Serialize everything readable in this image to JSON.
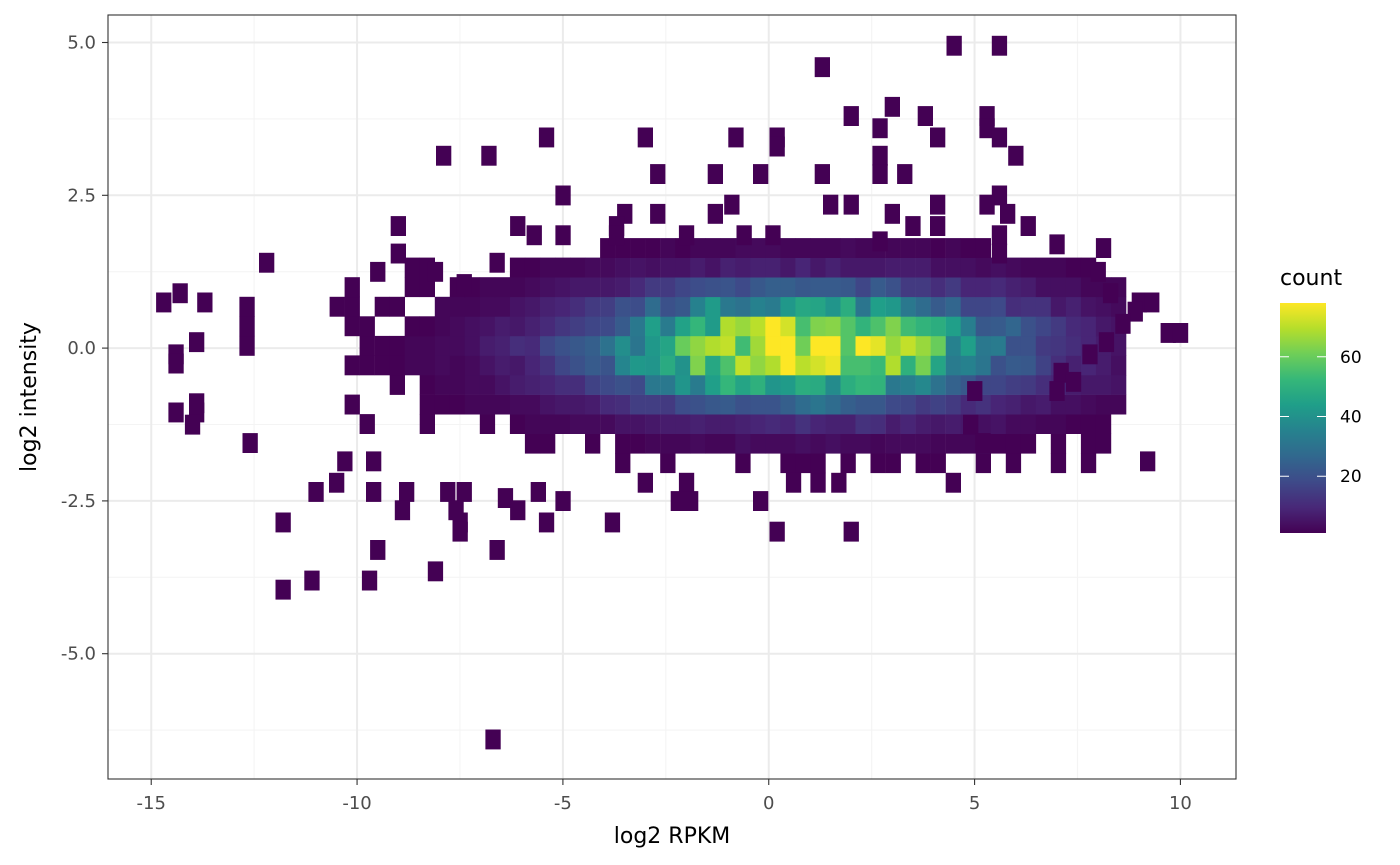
{
  "chart_data": {
    "type": "heatmap",
    "title": "",
    "xlabel": "log2 RPKM",
    "ylabel": "log2 intensity",
    "xlim": [
      -16.05,
      11.35
    ],
    "ylim": [
      -7.05,
      5.45
    ],
    "x_ticks": [
      -15,
      -10,
      -5,
      0,
      5,
      10
    ],
    "x_tick_labels": [
      "-15",
      "-10",
      "-5",
      "0",
      "5",
      "10"
    ],
    "y_ticks": [
      5.0,
      2.5,
      0.0,
      -2.5,
      -5.0
    ],
    "y_tick_labels": [
      "5.0",
      "2.5",
      "0.0",
      "-2.5",
      "-5.0"
    ],
    "grid": true,
    "bin_width": [
      0.365,
      0.32
    ],
    "legend": {
      "title": "count",
      "position": "right",
      "min": 1,
      "max": 78,
      "ticks": [
        20,
        40,
        60
      ],
      "tick_labels": [
        "20",
        "40",
        "60"
      ]
    },
    "colors": {
      "scale": [
        "#440154",
        "#482878",
        "#3e4a89",
        "#31688e",
        "#26828e",
        "#1f9e89",
        "#35b779",
        "#6ece58",
        "#b5de2b",
        "#fde725"
      ],
      "panel_border": "#333333",
      "grid_major": "#ebebeb",
      "grid_minor": "#f4f4f4"
    },
    "outlier_bins": [
      [
        4.5,
        4.95,
        1
      ],
      [
        5.6,
        4.95,
        1
      ],
      [
        1.3,
        4.6,
        1
      ],
      [
        3.0,
        3.95,
        1
      ],
      [
        2.0,
        3.8,
        1
      ],
      [
        3.8,
        3.8,
        1
      ],
      [
        5.3,
        3.8,
        1
      ],
      [
        2.7,
        3.6,
        1
      ],
      [
        5.3,
        3.6,
        1
      ],
      [
        -5.4,
        3.45,
        1
      ],
      [
        -3.0,
        3.45,
        1
      ],
      [
        -0.8,
        3.45,
        1
      ],
      [
        0.2,
        3.45,
        1
      ],
      [
        4.1,
        3.45,
        1
      ],
      [
        5.6,
        3.45,
        1
      ],
      [
        0.2,
        3.3,
        1
      ],
      [
        -7.9,
        3.15,
        1
      ],
      [
        -6.8,
        3.15,
        1
      ],
      [
        2.7,
        3.15,
        1
      ],
      [
        6.0,
        3.15,
        1
      ],
      [
        -2.7,
        2.85,
        1
      ],
      [
        -1.3,
        2.85,
        1
      ],
      [
        -0.2,
        2.85,
        1
      ],
      [
        1.3,
        2.85,
        1
      ],
      [
        2.7,
        2.85,
        1
      ],
      [
        3.3,
        2.85,
        1
      ],
      [
        -5.0,
        2.5,
        1
      ],
      [
        5.6,
        2.5,
        1
      ],
      [
        -0.9,
        2.35,
        1
      ],
      [
        1.5,
        2.35,
        1
      ],
      [
        2.0,
        2.35,
        1
      ],
      [
        4.1,
        2.35,
        1
      ],
      [
        5.3,
        2.35,
        1
      ],
      [
        -3.5,
        2.2,
        1
      ],
      [
        -2.7,
        2.2,
        1
      ],
      [
        -1.3,
        2.2,
        1
      ],
      [
        3.0,
        2.2,
        1
      ],
      [
        5.8,
        2.2,
        1
      ],
      [
        -9.0,
        2.0,
        1
      ],
      [
        -6.1,
        2.0,
        1
      ],
      [
        -3.7,
        2.0,
        1
      ],
      [
        3.5,
        2.0,
        1
      ],
      [
        4.1,
        2.0,
        1
      ],
      [
        6.3,
        2.0,
        1
      ],
      [
        -5.7,
        1.85,
        1
      ],
      [
        -5.0,
        1.85,
        1
      ],
      [
        -3.7,
        1.85,
        1
      ],
      [
        -2.0,
        1.85,
        1
      ],
      [
        -0.6,
        1.85,
        1
      ],
      [
        0.1,
        1.85,
        1
      ],
      [
        2.7,
        1.75,
        1
      ],
      [
        5.6,
        1.85,
        1
      ],
      [
        7.0,
        1.7,
        1
      ],
      [
        -9.0,
        1.55,
        1
      ],
      [
        5.6,
        1.55,
        1
      ],
      [
        -12.2,
        1.4,
        1
      ],
      [
        -9.5,
        1.25,
        1
      ],
      [
        -8.1,
        1.25,
        1
      ],
      [
        -6.6,
        1.4,
        1
      ],
      [
        8.0,
        1.25,
        1
      ],
      [
        -7.4,
        1.05,
        1
      ],
      [
        -14.3,
        0.9,
        1
      ],
      [
        -14.7,
        0.75,
        1
      ],
      [
        -13.7,
        0.75,
        1
      ],
      [
        8.3,
        0.9,
        1
      ],
      [
        9.0,
        0.75,
        1
      ],
      [
        9.3,
        0.75,
        1
      ],
      [
        8.9,
        0.6,
        1
      ],
      [
        8.6,
        0.4,
        1
      ],
      [
        9.7,
        0.25,
        1
      ],
      [
        10.0,
        0.25,
        1
      ],
      [
        -13.9,
        0.1,
        1
      ],
      [
        8.2,
        0.1,
        1
      ],
      [
        7.8,
        -0.1,
        1
      ],
      [
        -14.4,
        -0.1,
        1
      ],
      [
        -14.4,
        -0.25,
        1
      ],
      [
        7.1,
        -0.4,
        1
      ],
      [
        7.4,
        -0.55,
        1
      ],
      [
        -13.9,
        -0.9,
        1
      ],
      [
        -13.9,
        -1.05,
        1
      ],
      [
        -14.4,
        -1.05,
        1
      ],
      [
        -14.0,
        -1.25,
        1
      ],
      [
        5.0,
        -0.7,
        1
      ],
      [
        7.0,
        -0.7,
        1
      ],
      [
        4.9,
        -1.25,
        1
      ],
      [
        5.2,
        -1.55,
        1
      ],
      [
        -12.6,
        -1.55,
        1
      ],
      [
        9.2,
        -1.85,
        1
      ],
      [
        -10.3,
        -1.85,
        1
      ],
      [
        -9.6,
        -1.85,
        1
      ],
      [
        -10.5,
        -2.2,
        1
      ],
      [
        -11.0,
        -2.35,
        1
      ],
      [
        -9.6,
        -2.35,
        1
      ],
      [
        -8.8,
        -2.35,
        1
      ],
      [
        -7.8,
        -2.35,
        1
      ],
      [
        -7.4,
        -2.35,
        1
      ],
      [
        -6.4,
        -2.45,
        1
      ],
      [
        -5.6,
        -2.35,
        1
      ],
      [
        -5.0,
        -2.5,
        1
      ],
      [
        -3.0,
        -2.2,
        1
      ],
      [
        -2.0,
        -2.2,
        1
      ],
      [
        -1.9,
        -2.5,
        1
      ],
      [
        -2.2,
        -2.5,
        1
      ],
      [
        -0.2,
        -2.5,
        1
      ],
      [
        0.6,
        -2.2,
        1
      ],
      [
        1.7,
        -2.2,
        1
      ],
      [
        -8.9,
        -2.65,
        1
      ],
      [
        -7.6,
        -2.65,
        1
      ],
      [
        -6.1,
        -2.65,
        1
      ],
      [
        -7.5,
        -2.85,
        1
      ],
      [
        -5.4,
        -2.85,
        1
      ],
      [
        -3.8,
        -2.85,
        1
      ],
      [
        -11.8,
        -2.85,
        1
      ],
      [
        -7.5,
        -3.0,
        1
      ],
      [
        0.2,
        -3.0,
        1
      ],
      [
        2.0,
        -3.0,
        1
      ],
      [
        -9.5,
        -3.3,
        1
      ],
      [
        -6.6,
        -3.3,
        1
      ],
      [
        -8.1,
        -3.65,
        1
      ],
      [
        -11.1,
        -3.8,
        1
      ],
      [
        -9.7,
        -3.8,
        1
      ],
      [
        -11.8,
        -3.95,
        1
      ],
      [
        -6.7,
        -6.4,
        1
      ]
    ],
    "density_model": {
      "comment": "2D binned counts: dense core centred near (0.9, 0.0), peak count about 78",
      "center_x": 0.9,
      "center_y": 0.0,
      "sigma_x": 3.3,
      "sigma_y": 0.62,
      "peak": 78,
      "x_range": [
        -14.5,
        8.5
      ],
      "y_range": [
        -2.2,
        1.9
      ]
    }
  }
}
